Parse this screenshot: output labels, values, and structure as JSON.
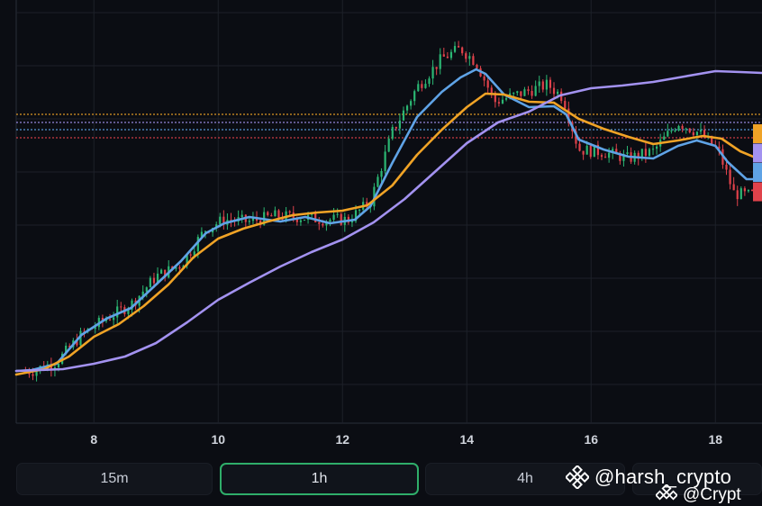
{
  "chart_data": {
    "type": "candlestick",
    "xlim": [
      6.75,
      18.75
    ],
    "x_ticks": [
      8,
      10,
      12,
      14,
      16,
      18
    ],
    "x_tick_labels": [
      "8",
      "10",
      "12",
      "14",
      "16",
      "18"
    ],
    "grid": true,
    "y_axis_labels_visible": false,
    "series": [
      {
        "kind": "moving_average",
        "color": "#5fa3e6",
        "points": [
          [
            6.75,
            12
          ],
          [
            7.0,
            13
          ],
          [
            7.4,
            20
          ],
          [
            7.8,
            52
          ],
          [
            8.2,
            70
          ],
          [
            8.6,
            82
          ],
          [
            9.0,
            108
          ],
          [
            9.4,
            134
          ],
          [
            9.8,
            165
          ],
          [
            10.1,
            176
          ],
          [
            10.5,
            183
          ],
          [
            11.0,
            178
          ],
          [
            11.4,
            183
          ],
          [
            11.8,
            176
          ],
          [
            12.2,
            180
          ],
          [
            12.45,
            195
          ],
          [
            12.8,
            243
          ],
          [
            13.2,
            294
          ],
          [
            13.6,
            322
          ],
          [
            13.9,
            338
          ],
          [
            14.15,
            347
          ],
          [
            14.3,
            342
          ],
          [
            14.6,
            319
          ],
          [
            15.0,
            305
          ],
          [
            15.4,
            306
          ],
          [
            15.6,
            297
          ],
          [
            15.8,
            269
          ],
          [
            16.2,
            258
          ],
          [
            16.6,
            250
          ],
          [
            17.0,
            248
          ],
          [
            17.4,
            262
          ],
          [
            17.7,
            268
          ],
          [
            18.0,
            262
          ],
          [
            18.2,
            244
          ],
          [
            18.5,
            225
          ],
          [
            18.75,
            225
          ]
        ]
      },
      {
        "kind": "moving_average",
        "color": "#f0a326",
        "points": [
          [
            6.75,
            8
          ],
          [
            7.2,
            14
          ],
          [
            7.6,
            28
          ],
          [
            8.0,
            50
          ],
          [
            8.4,
            64
          ],
          [
            8.8,
            84
          ],
          [
            9.2,
            108
          ],
          [
            9.6,
            138
          ],
          [
            10.0,
            159
          ],
          [
            10.4,
            170
          ],
          [
            10.8,
            178
          ],
          [
            11.2,
            185
          ],
          [
            11.6,
            188
          ],
          [
            12.0,
            190
          ],
          [
            12.4,
            196
          ],
          [
            12.8,
            218
          ],
          [
            13.2,
            252
          ],
          [
            13.6,
            280
          ],
          [
            14.0,
            305
          ],
          [
            14.3,
            320
          ],
          [
            14.6,
            319
          ],
          [
            15.0,
            311
          ],
          [
            15.4,
            310
          ],
          [
            15.8,
            292
          ],
          [
            16.2,
            281
          ],
          [
            16.6,
            272
          ],
          [
            17.0,
            264
          ],
          [
            17.4,
            268
          ],
          [
            17.8,
            273
          ],
          [
            18.1,
            270
          ],
          [
            18.4,
            256
          ],
          [
            18.75,
            246
          ]
        ]
      },
      {
        "kind": "moving_average",
        "color": "#a392f0",
        "points": [
          [
            6.75,
            12
          ],
          [
            7.5,
            14
          ],
          [
            8.0,
            20
          ],
          [
            8.5,
            28
          ],
          [
            9.0,
            43
          ],
          [
            9.5,
            66
          ],
          [
            10.0,
            91
          ],
          [
            10.5,
            110
          ],
          [
            11.0,
            128
          ],
          [
            11.5,
            144
          ],
          [
            12.0,
            158
          ],
          [
            12.5,
            177
          ],
          [
            13.0,
            203
          ],
          [
            13.5,
            234
          ],
          [
            14.0,
            265
          ],
          [
            14.5,
            288
          ],
          [
            15.0,
            300
          ],
          [
            15.5,
            318
          ],
          [
            16.0,
            326
          ],
          [
            16.5,
            329
          ],
          [
            17.0,
            333
          ],
          [
            17.5,
            339
          ],
          [
            18.0,
            345
          ],
          [
            18.4,
            344
          ],
          [
            18.75,
            343
          ]
        ]
      }
    ],
    "candles": {
      "up_color": "#2bb673",
      "down_color": "#e0424b",
      "bins": [
        [
          7.0,
          12
        ],
        [
          7.4,
          22
        ],
        [
          7.8,
          52
        ],
        [
          8.2,
          70
        ],
        [
          8.6,
          86
        ],
        [
          9.0,
          117
        ],
        [
          9.4,
          130
        ],
        [
          9.8,
          170
        ],
        [
          10.1,
          180
        ],
        [
          10.5,
          178
        ],
        [
          10.9,
          184
        ],
        [
          11.3,
          183
        ],
        [
          11.7,
          180
        ],
        [
          12.1,
          180
        ],
        [
          12.45,
          200
        ],
        [
          12.8,
          277
        ],
        [
          13.2,
          327
        ],
        [
          13.6,
          359
        ],
        [
          13.9,
          370
        ],
        [
          14.15,
          355
        ],
        [
          14.45,
          311
        ],
        [
          14.9,
          321
        ],
        [
          15.3,
          330
        ],
        [
          15.55,
          316
        ],
        [
          15.8,
          258
        ],
        [
          16.2,
          255
        ],
        [
          16.6,
          248
        ],
        [
          17.0,
          256
        ],
        [
          17.4,
          288
        ],
        [
          17.75,
          276
        ],
        [
          18.05,
          256
        ],
        [
          18.3,
          209
        ],
        [
          18.55,
          207
        ],
        [
          18.75,
          213
        ]
      ]
    },
    "price_lines": [
      {
        "color": "#f0a326",
        "value": 297,
        "style": "dotted"
      },
      {
        "color": "#a392f0",
        "value": 288,
        "style": "dotted"
      },
      {
        "color": "#5fa3e6",
        "value": 280,
        "style": "dotted"
      },
      {
        "color": "#e0424b",
        "value": 271,
        "style": "dotted"
      }
    ],
    "price_tags": [
      {
        "color": "#f0a326"
      },
      {
        "color": "#a392f0"
      },
      {
        "color": "#5fa3e6"
      },
      {
        "color": "#e0424b"
      }
    ]
  },
  "timeframes": [
    {
      "label": "15m",
      "active": false
    },
    {
      "label": "1h",
      "active": true
    },
    {
      "label": "4h",
      "active": false
    }
  ],
  "watermark": {
    "text": "@harsh_crypto",
    "text_partial": "@Crypt",
    "logo_icon": "binance-logo-icon"
  },
  "colors": {
    "background": "#0b0d13",
    "grid": "#1c2029",
    "axis_text": "#d0d4dc",
    "active_tab_border": "#2fae6a"
  }
}
